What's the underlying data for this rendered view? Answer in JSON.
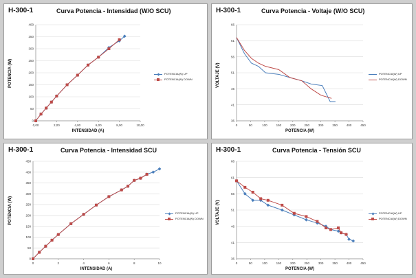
{
  "colors": {
    "up": "#4a7ebb",
    "down": "#be4b48",
    "grid": "#d9d9d9",
    "axis": "#868686"
  },
  "panels": [
    {
      "label": "H-300-1",
      "title": "Curva Potencia - Intensidad (W/O SCU)",
      "chart_data": {
        "type": "line",
        "xlabel": "INTENSIDAD (A)",
        "ylabel": "POTENCIA (W)",
        "xlim": [
          0,
          10
        ],
        "ylim": [
          0,
          400
        ],
        "xticks": [
          0,
          2,
          4,
          6,
          8,
          10
        ],
        "xtick_labels": [
          "0,00",
          "2,00",
          "4,00",
          "6,00",
          "8,00",
          "10,00"
        ],
        "yticks": [
          0,
          50,
          100,
          150,
          200,
          250,
          300,
          350,
          400
        ],
        "ytick_labels": [
          "0",
          "50",
          "100",
          "150",
          "200",
          "250",
          "300",
          "350",
          "400"
        ],
        "grid": "horizontal",
        "legend_position": "right",
        "series": [
          {
            "name": "POTENCIA(W) UP",
            "marker": "diamond",
            "x": [
              0,
              0.5,
              1,
              1.5,
              2,
              3,
              4,
              5,
              6,
              7,
              8,
              8.5
            ],
            "y": [
              0,
              28,
              53,
              78,
              103,
              150,
              190,
              232,
              265,
              305,
              333,
              352
            ]
          },
          {
            "name": "POTENCIA(W) DOWN",
            "marker": "square",
            "x": [
              0,
              0.5,
              1,
              1.5,
              2,
              3,
              4,
              5,
              6,
              7,
              8
            ],
            "y": [
              0,
              28,
              53,
              78,
              103,
              150,
              190,
              232,
              265,
              300,
              338
            ]
          }
        ]
      }
    },
    {
      "label": "H-300-1",
      "title": "Curva Potencia - Voltaje (W/O SCU)",
      "chart_data": {
        "type": "line",
        "xlabel": "POTENCIA (W)",
        "ylabel": "VOLTAJE (V)",
        "xlim": [
          0,
          450
        ],
        "ylim": [
          36,
          66
        ],
        "xticks": [
          0,
          50,
          100,
          150,
          200,
          250,
          300,
          350,
          400,
          450
        ],
        "xtick_labels": [
          "0",
          "50",
          "100",
          "150",
          "200",
          "250",
          "300",
          "350",
          "400",
          "450"
        ],
        "yticks": [
          36,
          41,
          46,
          51,
          56,
          61,
          66
        ],
        "ytick_labels": [
          "36",
          "41",
          "46",
          "51",
          "56",
          "61",
          "66"
        ],
        "grid": "horizontal",
        "legend_position": "right",
        "series": [
          {
            "name": "POTENCIA(W) UP",
            "marker": "none",
            "x": [
              0,
              28,
              53,
              78,
              103,
              150,
              190,
              232,
              265,
              305,
              333,
              352
            ],
            "y": [
              62,
              57,
              54,
              53,
              51,
              50.5,
              49.5,
              48.5,
              47.5,
              47,
              42,
              42
            ]
          },
          {
            "name": "POTENCIA(W) DOWN",
            "marker": "none",
            "x": [
              0,
              28,
              53,
              78,
              103,
              150,
              190,
              232,
              265,
              300,
              338
            ],
            "y": [
              62,
              58,
              55.5,
              54,
              53,
              52,
              49.5,
              48.5,
              46,
              44,
              43
            ]
          }
        ]
      }
    },
    {
      "label": "H-300-1",
      "title": "Curva Potencia - Intensidad SCU",
      "chart_data": {
        "type": "line",
        "xlabel": "INTENSIDAD (A)",
        "ylabel": "POTENCIA (W)",
        "xlim": [
          0,
          10
        ],
        "ylim": [
          0,
          450
        ],
        "xticks": [
          0,
          2,
          4,
          6,
          8,
          10
        ],
        "xtick_labels": [
          "0",
          "2",
          "4",
          "6",
          "8",
          "10"
        ],
        "yticks": [
          0,
          50,
          100,
          150,
          200,
          250,
          300,
          350,
          400,
          450
        ],
        "ytick_labels": [
          "0",
          "50",
          "100",
          "150",
          "200",
          "250",
          "300",
          "350",
          "400",
          "450"
        ],
        "grid": "horizontal",
        "legend_position": "right",
        "series": [
          {
            "name": "POTENCIA(W) UP",
            "marker": "diamond",
            "x": [
              0,
              0.5,
              1,
              1.5,
              2,
              3,
              4,
              5,
              6,
              7,
              7.5,
              8,
              8.5,
              9,
              9.5,
              10
            ],
            "y": [
              0,
              30,
              58,
              86,
              112,
              162,
              205,
              248,
              287,
              318,
              335,
              362,
              372,
              390,
              400,
              415
            ]
          },
          {
            "name": "POTENCIA(W) DOWN",
            "marker": "square",
            "x": [
              0,
              0.5,
              1,
              1.5,
              2,
              3,
              4,
              5,
              6,
              7,
              7.5,
              8,
              8.5,
              9
            ],
            "y": [
              0,
              30,
              58,
              86,
              112,
              162,
              205,
              248,
              287,
              318,
              335,
              362,
              372,
              390
            ]
          }
        ]
      }
    },
    {
      "label": "H-300-1",
      "title": "Curva Potencia - Tensión SCU",
      "chart_data": {
        "type": "line",
        "xlabel": "POTENCIA (W)",
        "ylabel": "VOLTAJE (V)",
        "xlim": [
          0,
          450
        ],
        "ylim": [
          36,
          66
        ],
        "xticks": [
          0,
          50,
          100,
          150,
          200,
          250,
          300,
          350,
          400,
          450
        ],
        "xtick_labels": [
          "0",
          "50",
          "100",
          "150",
          "200",
          "250",
          "300",
          "350",
          "400",
          "450"
        ],
        "yticks": [
          36,
          41,
          46,
          51,
          56,
          61,
          66
        ],
        "ytick_labels": [
          "36",
          "41",
          "46",
          "51",
          "56",
          "61",
          "66"
        ],
        "grid": "horizontal",
        "legend_position": "right",
        "series": [
          {
            "name": "POTENCIA(W) UP",
            "marker": "diamond",
            "x": [
              0,
              30,
              58,
              86,
              112,
              162,
              205,
              248,
              287,
              318,
              335,
              362,
              372,
              390,
              400,
              415
            ],
            "y": [
              60,
              56,
              54,
              54,
              52.5,
              51,
              49.5,
              48,
              47,
              46,
              45,
              44.5,
              44,
              43.5,
              42,
              41.5
            ]
          },
          {
            "name": "POTENCIA(W) DOWN",
            "marker": "square",
            "x": [
              0,
              30,
              58,
              86,
              112,
              162,
              205,
              248,
              287,
              318,
              335,
              362,
              372,
              390
            ],
            "y": [
              60,
              58,
              56.5,
              54.5,
              54,
              52.5,
              50,
              49,
              47.5,
              45.5,
              45,
              45.5,
              44,
              43.5
            ]
          }
        ]
      }
    }
  ]
}
